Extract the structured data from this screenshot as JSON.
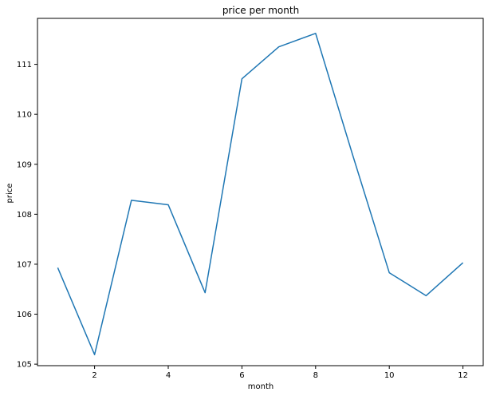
{
  "chart_data": {
    "type": "line",
    "title": "price per month",
    "xlabel": "month",
    "ylabel": "price",
    "x": [
      1,
      2,
      3,
      4,
      5,
      6,
      7,
      8,
      9,
      10,
      11,
      12
    ],
    "series": [
      {
        "values": [
          106.93,
          105.19,
          108.28,
          108.19,
          106.43,
          110.71,
          111.35,
          111.62,
          109.2,
          106.83,
          106.37,
          107.03
        ],
        "color": "#1f77b4"
      }
    ],
    "xlim": [
      0.45,
      12.55
    ],
    "ylim": [
      104.97,
      111.92
    ],
    "xticks": [
      2,
      4,
      6,
      8,
      10,
      12
    ],
    "yticks": [
      105,
      106,
      107,
      108,
      109,
      110,
      111
    ],
    "grid": false
  }
}
